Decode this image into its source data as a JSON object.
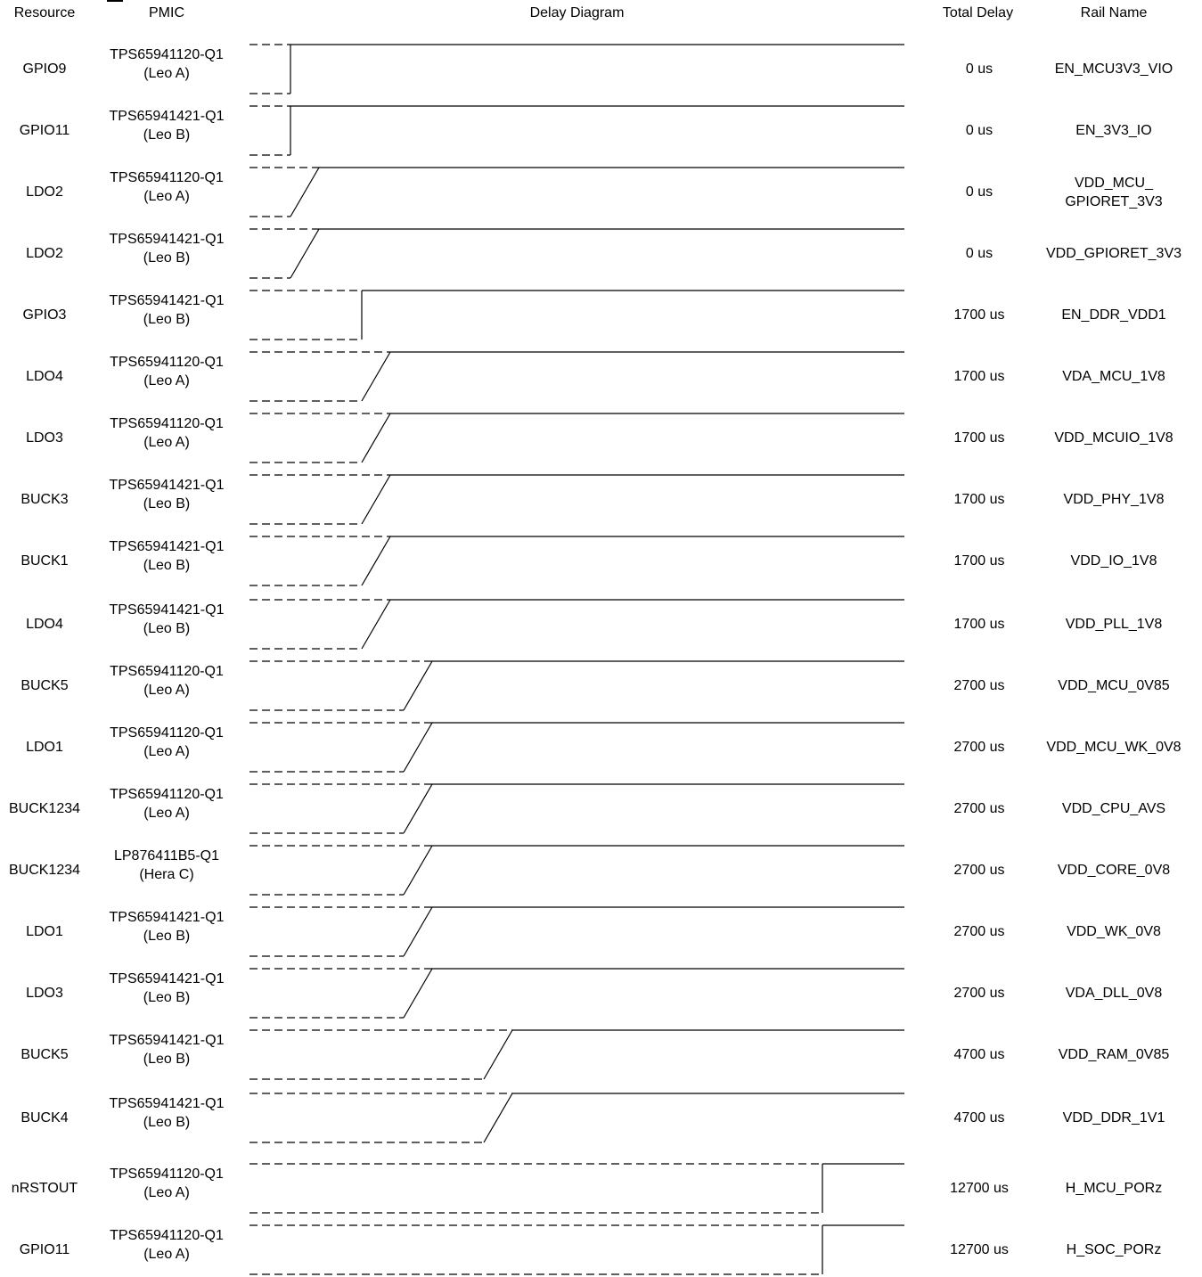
{
  "headers": {
    "resource": "Resource",
    "pmic": "PMIC",
    "diagram": "Delay Diagram",
    "delay": "Total Delay",
    "rail": "Rail Name"
  },
  "rows": [
    {
      "resource": "GPIO9",
      "pmic_part": "TPS65941120-Q1",
      "pmic_name": "(Leo A)",
      "delay": "0 us",
      "rail": "EN_MCU3V3_VIO",
      "rail2": "",
      "delay_us": 0,
      "edge": "step"
    },
    {
      "resource": "GPIO11",
      "pmic_part": "TPS65941421-Q1",
      "pmic_name": "(Leo B)",
      "delay": "0 us",
      "rail": "EN_3V3_IO",
      "rail2": "",
      "delay_us": 0,
      "edge": "step"
    },
    {
      "resource": "LDO2",
      "pmic_part": "TPS65941120-Q1",
      "pmic_name": "(Leo A)",
      "delay": "0 us",
      "rail": "VDD_MCU_",
      "rail2": "GPIORET_3V3",
      "delay_us": 0,
      "edge": "ramp"
    },
    {
      "resource": "LDO2",
      "pmic_part": "TPS65941421-Q1",
      "pmic_name": "(Leo B)",
      "delay": "0 us",
      "rail": "VDD_GPIORET_3V3",
      "rail2": "",
      "delay_us": 0,
      "edge": "ramp"
    },
    {
      "resource": "GPIO3",
      "pmic_part": "TPS65941421-Q1",
      "pmic_name": "(Leo B)",
      "delay": "1700 us",
      "rail": "EN_DDR_VDD1",
      "rail2": "",
      "delay_us": 1700,
      "edge": "step"
    },
    {
      "resource": "LDO4",
      "pmic_part": "TPS65941120-Q1",
      "pmic_name": "(Leo A)",
      "delay": "1700 us",
      "rail": "VDA_MCU_1V8",
      "rail2": "",
      "delay_us": 1700,
      "edge": "ramp"
    },
    {
      "resource": "LDO3",
      "pmic_part": "TPS65941120-Q1",
      "pmic_name": "(Leo A)",
      "delay": "1700 us",
      "rail": "VDD_MCUIO_1V8",
      "rail2": "",
      "delay_us": 1700,
      "edge": "ramp"
    },
    {
      "resource": "BUCK3",
      "pmic_part": "TPS65941421-Q1",
      "pmic_name": "(Leo B)",
      "delay": "1700 us",
      "rail": "VDD_PHY_1V8",
      "rail2": "",
      "delay_us": 1700,
      "edge": "ramp"
    },
    {
      "resource": "BUCK1",
      "pmic_part": "TPS65941421-Q1",
      "pmic_name": "(Leo B)",
      "delay": "1700 us",
      "rail": "VDD_IO_1V8",
      "rail2": "",
      "delay_us": 1700,
      "edge": "ramp"
    },
    {
      "resource": "LDO4",
      "pmic_part": "TPS65941421-Q1",
      "pmic_name": "(Leo B)",
      "delay": "1700 us",
      "rail": "VDD_PLL_1V8",
      "rail2": "",
      "delay_us": 1700,
      "edge": "ramp"
    },
    {
      "resource": "BUCK5",
      "pmic_part": "TPS65941120-Q1",
      "pmic_name": "(Leo A)",
      "delay": "2700 us",
      "rail": "VDD_MCU_0V85",
      "rail2": "",
      "delay_us": 2700,
      "edge": "ramp"
    },
    {
      "resource": "LDO1",
      "pmic_part": "TPS65941120-Q1",
      "pmic_name": "(Leo A)",
      "delay": "2700 us",
      "rail": "VDD_MCU_WK_0V8",
      "rail2": "",
      "delay_us": 2700,
      "edge": "ramp"
    },
    {
      "resource": "BUCK1234",
      "pmic_part": "TPS65941120-Q1",
      "pmic_name": "(Leo A)",
      "delay": "2700 us",
      "rail": "VDD_CPU_AVS",
      "rail2": "",
      "delay_us": 2700,
      "edge": "ramp"
    },
    {
      "resource": "BUCK1234",
      "pmic_part": "LP876411B5-Q1",
      "pmic_name": "(Hera C)",
      "delay": "2700 us",
      "rail": "VDD_CORE_0V8",
      "rail2": "",
      "delay_us": 2700,
      "edge": "ramp"
    },
    {
      "resource": "LDO1",
      "pmic_part": "TPS65941421-Q1",
      "pmic_name": "(Leo B)",
      "delay": "2700 us",
      "rail": "VDD_WK_0V8",
      "rail2": "",
      "delay_us": 2700,
      "edge": "ramp"
    },
    {
      "resource": "LDO3",
      "pmic_part": "TPS65941421-Q1",
      "pmic_name": "(Leo B)",
      "delay": "2700 us",
      "rail": "VDA_DLL_0V8",
      "rail2": "",
      "delay_us": 2700,
      "edge": "ramp"
    },
    {
      "resource": "BUCK5",
      "pmic_part": "TPS65941421-Q1",
      "pmic_name": "(Leo B)",
      "delay": "4700 us",
      "rail": "VDD_RAM_0V85",
      "rail2": "",
      "delay_us": 4700,
      "edge": "ramp"
    },
    {
      "resource": "BUCK4",
      "pmic_part": "TPS65941421-Q1",
      "pmic_name": "(Leo B)",
      "delay": "4700 us",
      "rail": "VDD_DDR_1V1",
      "rail2": "",
      "delay_us": 4700,
      "edge": "ramp"
    },
    {
      "resource": "nRSTOUT",
      "pmic_part": "TPS65941120-Q1",
      "pmic_name": "(Leo A)",
      "delay": "12700 us",
      "rail": "H_MCU_PORz",
      "rail2": "",
      "delay_us": 12700,
      "edge": "step"
    },
    {
      "resource": "GPIO11",
      "pmic_part": "TPS65941120-Q1",
      "pmic_name": "(Leo A)",
      "delay": "12700 us",
      "rail": "H_SOC_PORz",
      "rail2": "",
      "delay_us": 12700,
      "edge": "step"
    }
  ]
}
